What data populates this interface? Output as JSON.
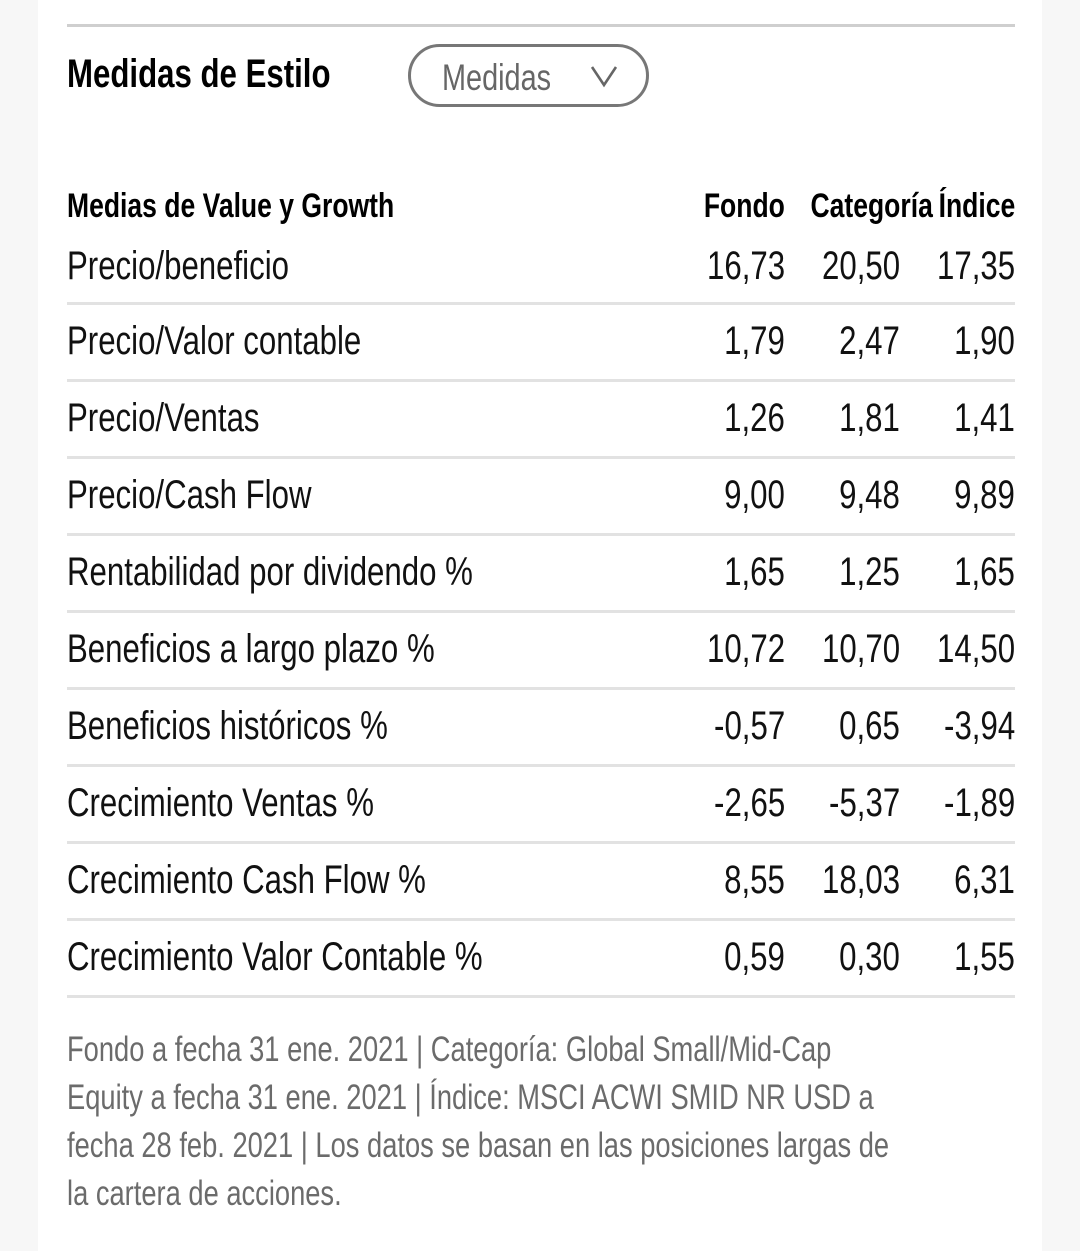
{
  "section": {
    "title": "Medidas de Estilo",
    "dropdown": {
      "selected": "Medidas",
      "icon": "chevron-down-icon"
    }
  },
  "table": {
    "headers": {
      "label": "Medias de Value y Growth",
      "fondo": "Fondo",
      "categoria": "Categoría",
      "indice": "Índice"
    },
    "rows": [
      {
        "label": "Precio/beneficio",
        "fondo": "16,73",
        "categoria": "20,50",
        "indice": "17,35"
      },
      {
        "label": "Precio/Valor contable",
        "fondo": "1,79",
        "categoria": "2,47",
        "indice": "1,90"
      },
      {
        "label": "Precio/Ventas",
        "fondo": "1,26",
        "categoria": "1,81",
        "indice": "1,41"
      },
      {
        "label": "Precio/Cash Flow",
        "fondo": "9,00",
        "categoria": "9,48",
        "indice": "9,89"
      },
      {
        "label": "Rentabilidad por dividendo %",
        "fondo": "1,65",
        "categoria": "1,25",
        "indice": "1,65"
      },
      {
        "label": "Beneficios a largo plazo %",
        "fondo": "10,72",
        "categoria": "10,70",
        "indice": "14,50"
      },
      {
        "label": "Beneficios históricos %",
        "fondo": "-0,57",
        "categoria": "0,65",
        "indice": "-3,94"
      },
      {
        "label": "Crecimiento Ventas %",
        "fondo": "-2,65",
        "categoria": "-5,37",
        "indice": "-1,89"
      },
      {
        "label": "Crecimiento Cash Flow %",
        "fondo": "8,55",
        "categoria": "18,03",
        "indice": "6,31"
      },
      {
        "label": "Crecimiento Valor Contable %",
        "fondo": "0,59",
        "categoria": "0,30",
        "indice": "1,55"
      }
    ]
  },
  "footnote": {
    "lines": [
      "Fondo a fecha 31 ene. 2021 | Categoría: Global Small/Mid-Cap",
      "Equity a fecha 31 ene. 2021 | Índice: MSCI ACWI SMID NR USD a",
      "fecha 28 feb. 2021 | Los datos se basan en las posiciones largas de",
      "la cartera de acciones."
    ]
  },
  "colors": {
    "text_primary": "#000000",
    "text_muted": "#6b6b6b",
    "divider": "#e2e2e2",
    "dropdown_border": "#777777"
  }
}
